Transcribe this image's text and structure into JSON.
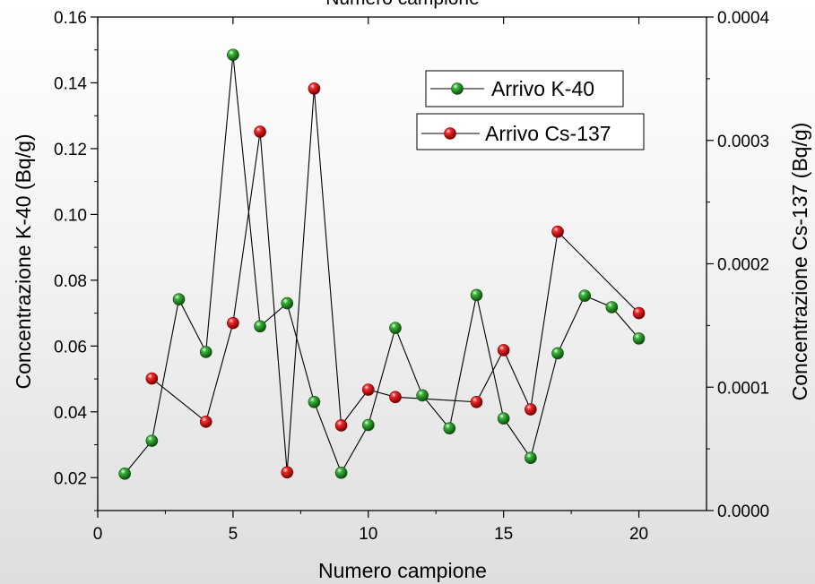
{
  "chart_data": {
    "type": "scatter",
    "title": "Numero campione",
    "xlabel": "Numero campione",
    "ylabel": "Concentrazione K-40 (Bq/g)",
    "y2label": "Concentrazione Cs-137 (Bq/g)",
    "xlim": [
      0,
      22.5
    ],
    "ylim": [
      0.01,
      0.16
    ],
    "y2lim": [
      0.0,
      0.0004
    ],
    "x_ticks": [
      "0",
      "5",
      "10",
      "15",
      "20"
    ],
    "y_ticks": [
      "0.02",
      "0.04",
      "0.06",
      "0.08",
      "0.10",
      "0.12",
      "0.14",
      "0.16"
    ],
    "y2_ticks": [
      "0.0000",
      "0.0001",
      "0.0002",
      "0.0003",
      "0.0004"
    ],
    "legend_position": "top-right",
    "series": [
      {
        "name": "Arrivo K-40",
        "axis": "left",
        "color": "#1a8a1a",
        "x": [
          1,
          2,
          3,
          4,
          5,
          6,
          7,
          8,
          9,
          10,
          11,
          12,
          13,
          14,
          15,
          16,
          17,
          18,
          19,
          20
        ],
        "y": [
          0.0212,
          0.0312,
          0.0742,
          0.0582,
          0.1485,
          0.066,
          0.073,
          0.043,
          0.0215,
          0.036,
          0.0655,
          0.045,
          0.035,
          0.0755,
          0.038,
          0.026,
          0.0578,
          0.0753,
          0.0718,
          0.0623
        ]
      },
      {
        "name": "Arrivo Cs-137",
        "axis": "right",
        "color": "#e01010",
        "x": [
          2,
          4,
          5,
          6,
          7,
          8,
          9,
          10,
          11,
          14,
          15,
          16,
          17,
          20
        ],
        "y": [
          0.000107,
          7.2e-05,
          0.000152,
          0.000307,
          3.1e-05,
          0.000342,
          6.9e-05,
          9.8e-05,
          9.2e-05,
          8.8e-05,
          0.00013,
          8.2e-05,
          0.000226,
          0.00016
        ]
      }
    ]
  }
}
